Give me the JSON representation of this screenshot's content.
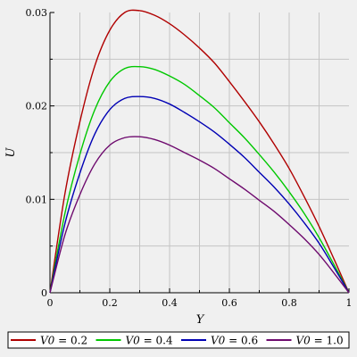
{
  "chart_data": {
    "type": "line",
    "xlabel": "Y",
    "ylabel": "U",
    "xlim": [
      0,
      1
    ],
    "ylim": [
      0,
      0.03
    ],
    "x_ticks": [
      0,
      0.2,
      0.4,
      0.6,
      0.8,
      1
    ],
    "x_tick_labels": [
      "0",
      "0.2",
      "0.4",
      "0.6",
      "0.8",
      "1"
    ],
    "y_ticks": [
      0,
      0.01,
      0.02,
      0.03
    ],
    "y_tick_labels": [
      "0",
      "0.01",
      "0.02",
      "0.03"
    ],
    "grid": true,
    "legend_position": "bottom",
    "x": [
      0,
      0.05,
      0.1,
      0.15,
      0.2,
      0.25,
      0.3,
      0.35,
      0.4,
      0.45,
      0.5,
      0.55,
      0.6,
      0.65,
      0.7,
      0.75,
      0.8,
      0.85,
      0.9,
      0.95,
      1
    ],
    "series": [
      {
        "name": "V0 = 0.2",
        "name_var": "V0",
        "name_value": " = 0.2",
        "color": "#b00000",
        "values": [
          0,
          0.0106,
          0.0183,
          0.0243,
          0.0281,
          0.03,
          0.0302,
          0.0297,
          0.0288,
          0.0276,
          0.0262,
          0.0246,
          0.0226,
          0.0205,
          0.0183,
          0.0159,
          0.0133,
          0.0103,
          0.0071,
          0.0036,
          0
        ]
      },
      {
        "name": "V0 = 0.4",
        "name_var": "V0",
        "name_value": " = 0.4",
        "color": "#00c800",
        "values": [
          0,
          0.0085,
          0.0148,
          0.0196,
          0.0226,
          0.024,
          0.0242,
          0.0239,
          0.0232,
          0.0223,
          0.0211,
          0.0198,
          0.0182,
          0.0166,
          0.0148,
          0.0129,
          0.0108,
          0.0085,
          0.0059,
          0.003,
          0
        ]
      },
      {
        "name": "V0 = 0.6",
        "name_var": "V0",
        "name_value": " = 0.6",
        "color": "#0000b4",
        "values": [
          0,
          0.0074,
          0.0128,
          0.017,
          0.0196,
          0.0208,
          0.021,
          0.0208,
          0.0202,
          0.0193,
          0.0183,
          0.0172,
          0.0159,
          0.0145,
          0.0129,
          0.0113,
          0.0095,
          0.0075,
          0.0053,
          0.0027,
          0
        ]
      },
      {
        "name": "V0 = 1.0",
        "name_var": "V0",
        "name_value": " = 1.0",
        "color": "#6e0a6e",
        "values": [
          0,
          0.0062,
          0.0105,
          0.0138,
          0.0158,
          0.0166,
          0.0167,
          0.0164,
          0.0158,
          0.015,
          0.0142,
          0.0133,
          0.0122,
          0.0111,
          0.0099,
          0.0087,
          0.0073,
          0.0058,
          0.0041,
          0.0021,
          0
        ]
      }
    ]
  }
}
